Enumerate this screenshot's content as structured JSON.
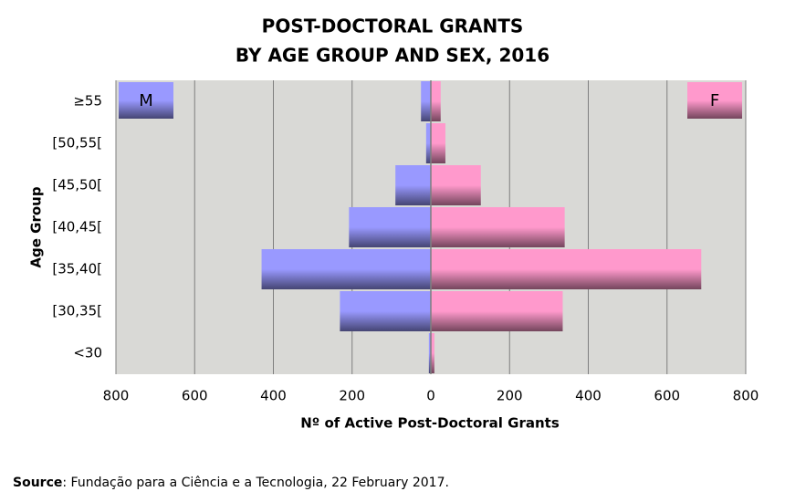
{
  "chart_data": {
    "type": "pyramid",
    "title": [
      "POST-DOCTORAL GRANTS",
      "BY AGE GROUP AND SEX, 2016"
    ],
    "x_label": "Nº of Active Post-Doctoral Grants",
    "y_label": "Age Group",
    "categories": [
      "≥55",
      "[50,55[",
      "[45,50[",
      "[40,45[",
      "[35,40[",
      "[30,35[",
      "<30"
    ],
    "series": [
      {
        "name": "M",
        "color": "#9999ff",
        "values": [
          -25,
          -12,
          -90,
          -208,
          -430,
          -231,
          -5
        ]
      },
      {
        "name": "F",
        "color": "#ff99cc",
        "values": [
          25,
          37,
          127,
          340,
          687,
          335,
          9
        ]
      }
    ],
    "xlim": [
      -800,
      800
    ],
    "xticks": [
      {
        "value": -800,
        "label": "800"
      },
      {
        "value": -600,
        "label": "600"
      },
      {
        "value": -400,
        "label": "400"
      },
      {
        "value": -200,
        "label": "200"
      },
      0,
      200,
      400,
      600,
      800
    ],
    "grid": true,
    "source_label": "Source",
    "source_text": ": Fundação para a Ciência e a Tecnologia, 22 February 2017."
  }
}
